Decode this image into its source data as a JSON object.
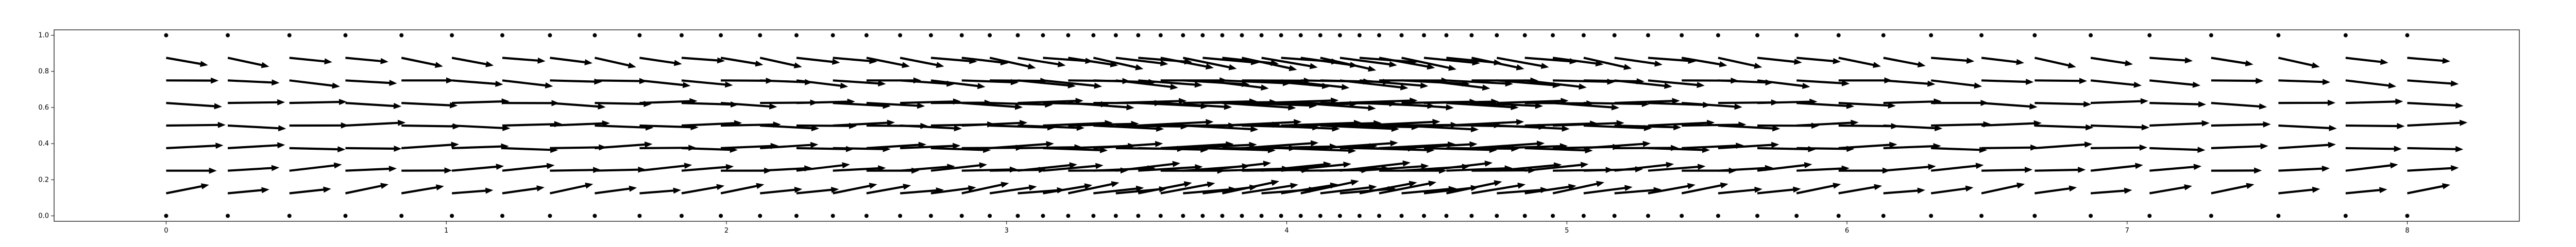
{
  "chart_data": {
    "type": "quiver",
    "title": "",
    "xlabel": "",
    "ylabel": "",
    "xlim": [
      -0.4,
      8.4
    ],
    "ylim": [
      -0.03,
      1.03
    ],
    "grid": false,
    "legend": "none",
    "x_ticks": [
      "0",
      "1",
      "2",
      "3",
      "4",
      "5",
      "6",
      "7",
      "8"
    ],
    "y_ticks": [
      "0.0",
      "0.2",
      "0.4",
      "0.6",
      "0.8",
      "1.0"
    ],
    "arrow_color": "#000000",
    "field": {
      "description_of_layout": "Grid of nodes on [0,8] x [0,1]; denser near x=4; arrows point mostly in +x with small y tilt; boundary rows at y=0 and y=1 are zero-vectors drawn as dots.",
      "columns_x": [
        0.0,
        0.22,
        0.44,
        0.64,
        0.84,
        1.02,
        1.2,
        1.37,
        1.53,
        1.69,
        1.84,
        1.98,
        2.12,
        2.25,
        2.38,
        2.5,
        2.62,
        2.73,
        2.84,
        2.94,
        3.04,
        3.13,
        3.22,
        3.31,
        3.39,
        3.47,
        3.55,
        3.63,
        3.7,
        3.77,
        3.84,
        3.91,
        3.98,
        4.05,
        4.12,
        4.19,
        4.26,
        4.33,
        4.41,
        4.49,
        4.57,
        4.66,
        4.75,
        4.85,
        4.95,
        5.06,
        5.17,
        5.29,
        5.41,
        5.54,
        5.68,
        5.82,
        5.97,
        6.13,
        6.3,
        6.48,
        6.67,
        6.87,
        7.08,
        7.3,
        7.54,
        7.78,
        8.0
      ],
      "rows_y": [
        0.0,
        0.125,
        0.25,
        0.375,
        0.5,
        0.625,
        0.75,
        0.875,
        1.0
      ],
      "u_profile": [
        0.0,
        0.82,
        1.0,
        1.1,
        1.15,
        1.1,
        1.0,
        0.82,
        0.0
      ],
      "v_profile": [
        0.0,
        0.12,
        0.06,
        0.02,
        0.0,
        -0.02,
        -0.06,
        -0.12,
        0.0
      ]
    }
  }
}
